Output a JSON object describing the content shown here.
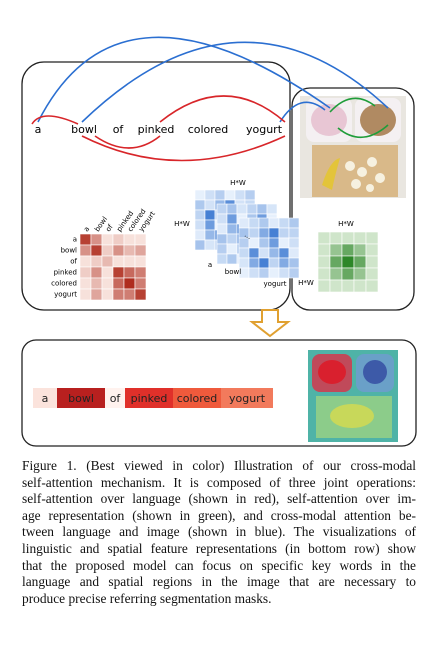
{
  "top_panel": {
    "words": [
      "a",
      "bowl",
      "of",
      "pinked",
      "colored",
      "yogurt"
    ],
    "matrix_labels": [
      "a",
      "bowl",
      "of",
      "pinked",
      "colored",
      "yogurt"
    ],
    "image_grid_labels": {
      "top": "H*W",
      "left": "H*W",
      "first": "a",
      "second": "bowl",
      "last": "yogurt"
    },
    "green_grid_labels": {
      "top": "H*W",
      "left": "H*W"
    }
  },
  "bottom_panel": {
    "words": [
      "a",
      "bowl",
      "of",
      "pinked",
      "colored",
      "yogurt"
    ]
  },
  "caption": {
    "lines": [
      "Figure 1. (Best viewed in color) Illustration of our cross-modal",
      "self-attention mechanism. It is composed of three joint operations:",
      "self-attention over language (shown in red), self-attention over im-",
      "age representation (shown in green), and cross-modal attention be-",
      "tween language and image (shown in blue). The visualizations of",
      "linguistic and spatial feature representations (in bottom row) show",
      "that the proposed model can focus on specific key words in the",
      "language and spatial regions in the image that are necessary to",
      "produce precise referring segmentation masks."
    ]
  }
}
